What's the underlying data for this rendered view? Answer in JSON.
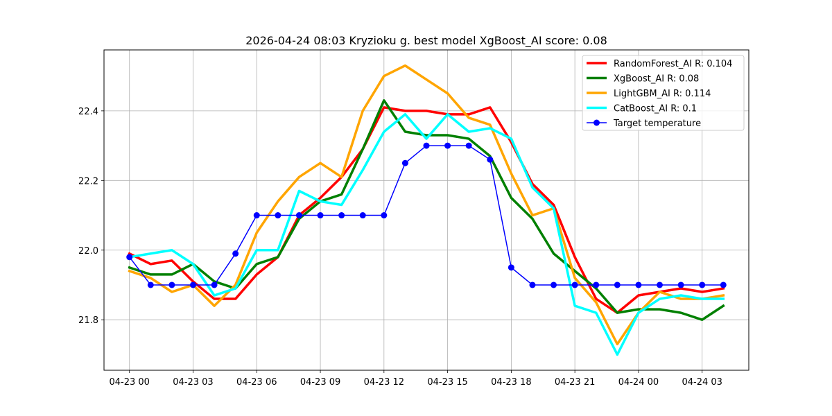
{
  "chart_data": {
    "type": "line",
    "title": "2026-04-24 08:03 Kryzioku g. best model XgBoost_AI score: 0.08",
    "xlabel": "",
    "ylabel": "",
    "x_ticks": [
      "04-23 00",
      "04-23 03",
      "04-23 06",
      "04-23 09",
      "04-23 12",
      "04-23 15",
      "04-23 18",
      "04-23 21",
      "04-24 00",
      "04-24 03"
    ],
    "y_ticks": [
      "21.8",
      "22.0",
      "22.2",
      "22.4"
    ],
    "xlim": [
      "2026-04-22 22:48",
      "2026-04-24 05:12"
    ],
    "ylim": [
      21.655,
      22.575
    ],
    "x": [
      "2026-04-23 00:00",
      "2026-04-23 01:00",
      "2026-04-23 02:00",
      "2026-04-23 03:00",
      "2026-04-23 04:00",
      "2026-04-23 05:00",
      "2026-04-23 06:00",
      "2026-04-23 07:00",
      "2026-04-23 08:00",
      "2026-04-23 09:00",
      "2026-04-23 10:00",
      "2026-04-23 11:00",
      "2026-04-23 12:00",
      "2026-04-23 13:00",
      "2026-04-23 14:00",
      "2026-04-23 15:00",
      "2026-04-23 16:00",
      "2026-04-23 17:00",
      "2026-04-23 18:00",
      "2026-04-23 19:00",
      "2026-04-23 20:00",
      "2026-04-23 21:00",
      "2026-04-23 22:00",
      "2026-04-23 23:00",
      "2026-04-24 00:00",
      "2026-04-24 01:00",
      "2026-04-24 02:00",
      "2026-04-24 03:00",
      "2026-04-24 04:00"
    ],
    "grid": true,
    "legend_position": "top-right",
    "series": [
      {
        "name": "RandomForest_AI R: 0.104",
        "color": "#ff0000",
        "markers": false,
        "values": [
          21.99,
          21.96,
          21.97,
          21.91,
          21.86,
          21.86,
          21.93,
          21.98,
          22.1,
          22.15,
          22.21,
          22.29,
          22.41,
          22.4,
          22.4,
          22.39,
          22.39,
          22.41,
          22.31,
          22.19,
          22.13,
          21.98,
          21.86,
          21.82,
          21.87,
          21.88,
          21.89,
          21.88,
          21.89
        ]
      },
      {
        "name": "XgBoost_AI R: 0.08",
        "color": "#008000",
        "markers": false,
        "values": [
          21.95,
          21.93,
          21.93,
          21.96,
          21.91,
          21.89,
          21.96,
          21.98,
          22.09,
          22.14,
          22.16,
          22.29,
          22.43,
          22.34,
          22.33,
          22.33,
          22.32,
          22.27,
          22.15,
          22.09,
          21.99,
          21.94,
          21.89,
          21.82,
          21.83,
          21.83,
          21.82,
          21.8,
          21.84
        ]
      },
      {
        "name": "LightGBM_AI R: 0.114",
        "color": "#ffa500",
        "markers": false,
        "values": [
          21.94,
          21.92,
          21.88,
          21.9,
          21.84,
          21.9,
          22.05,
          22.14,
          22.21,
          22.25,
          22.21,
          22.4,
          22.5,
          22.53,
          22.49,
          22.45,
          22.38,
          22.36,
          22.22,
          22.1,
          22.12,
          21.92,
          21.85,
          21.73,
          21.82,
          21.88,
          21.86,
          21.86,
          21.87
        ]
      },
      {
        "name": "CatBoost_AI R: 0.1",
        "color": "#00ffff",
        "markers": false,
        "values": [
          21.98,
          21.99,
          22.0,
          21.96,
          21.87,
          21.89,
          22.0,
          22.0,
          22.17,
          22.14,
          22.13,
          22.23,
          22.34,
          22.39,
          22.32,
          22.39,
          22.34,
          22.35,
          22.32,
          22.18,
          22.12,
          21.84,
          21.82,
          21.7,
          21.82,
          21.86,
          21.87,
          21.86,
          21.86
        ]
      },
      {
        "name": "Target temperature",
        "color": "#0000ff",
        "markers": true,
        "values": [
          21.98,
          21.9,
          21.9,
          21.9,
          21.9,
          21.99,
          22.1,
          22.1,
          22.1,
          22.1,
          22.1,
          22.1,
          22.1,
          22.25,
          22.3,
          22.3,
          22.3,
          22.26,
          21.95,
          21.9,
          21.9,
          21.9,
          21.9,
          21.9,
          21.9,
          21.9,
          21.9,
          21.9,
          21.9
        ]
      }
    ]
  }
}
